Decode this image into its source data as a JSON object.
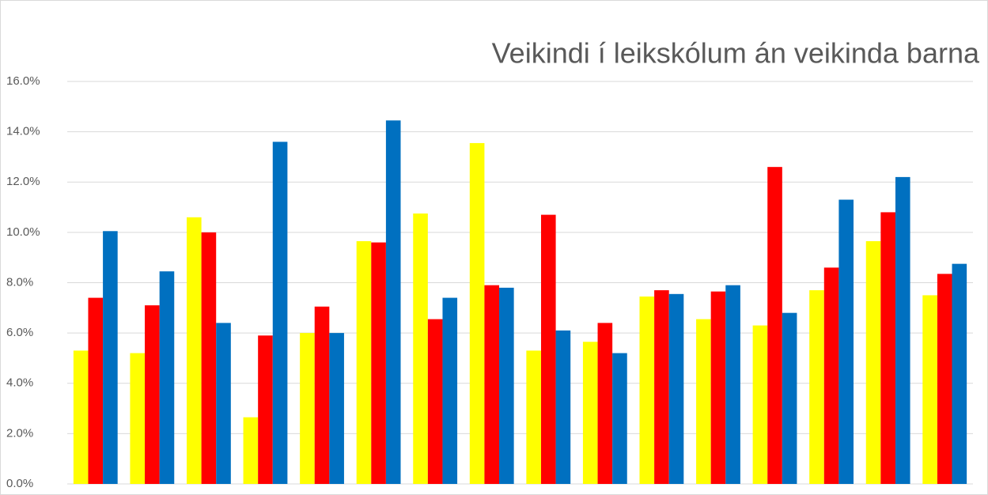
{
  "chart_data": {
    "type": "bar",
    "title": "Veikindi í leikskólum án veikinda barna",
    "categories": [
      null,
      null,
      null,
      null,
      null,
      null,
      null,
      null,
      null,
      null,
      null,
      null,
      null,
      null,
      null,
      null
    ],
    "series": [
      {
        "color": "#ffff00",
        "values": [
          5.3,
          5.2,
          10.6,
          2.65,
          6.0,
          9.65,
          10.75,
          13.55,
          5.3,
          5.65,
          7.45,
          6.55,
          6.3,
          7.7,
          9.65,
          7.5
        ]
      },
      {
        "color": "#ff0000",
        "values": [
          7.4,
          7.1,
          10.0,
          5.9,
          7.05,
          9.6,
          6.55,
          7.9,
          10.7,
          6.4,
          7.7,
          7.65,
          12.6,
          8.6,
          10.8,
          8.35
        ]
      },
      {
        "color": "#0070c0",
        "values": [
          10.05,
          8.45,
          6.4,
          13.6,
          6.0,
          14.45,
          7.4,
          7.8,
          6.1,
          5.2,
          7.55,
          7.9,
          6.8,
          11.3,
          12.2,
          8.75
        ]
      }
    ],
    "ylim": [
      0,
      16
    ],
    "yticks": [
      {
        "value": 0,
        "label": "0.0%"
      },
      {
        "value": 2,
        "label": "2.0%"
      },
      {
        "value": 4,
        "label": "4.0%"
      },
      {
        "value": 6,
        "label": "6.0%"
      },
      {
        "value": 8,
        "label": "8.0%"
      },
      {
        "value": 10,
        "label": "10.0%"
      },
      {
        "value": 12,
        "label": "12.0%"
      },
      {
        "value": 14,
        "label": "14.0%"
      },
      {
        "value": 16,
        "label": "16.0%"
      }
    ],
    "grid": true
  }
}
